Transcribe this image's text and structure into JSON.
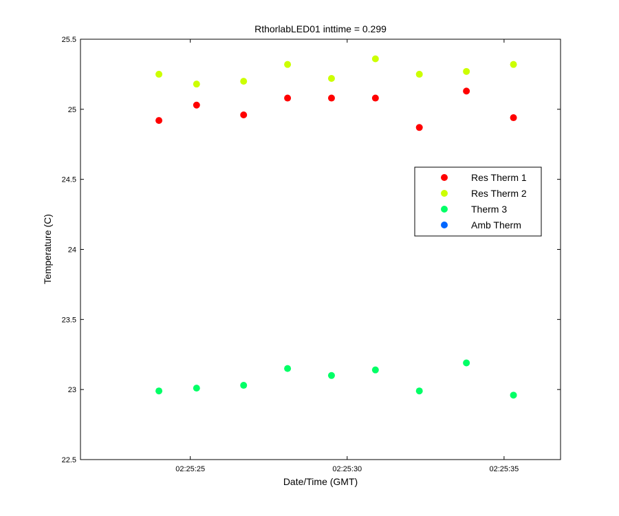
{
  "chart_data": {
    "type": "scatter",
    "title": "RthorlabLED01 inttime = 0.299",
    "xlabel": "Date/Time (GMT)",
    "ylabel": "Temperature (C)",
    "x_axis": {
      "kind": "time",
      "range": [
        "02:25:21.5",
        "02:25:36.8"
      ],
      "ticks": [
        "02:25:25",
        "02:25:30",
        "02:25:35"
      ]
    },
    "y_axis": {
      "range": [
        22.5,
        25.5
      ],
      "ticks": [
        "22.5",
        "23",
        "23.5",
        "24",
        "24.5",
        "25",
        "25.5"
      ]
    },
    "grid": false,
    "legend": {
      "position": "right"
    },
    "x": [
      "02:25:24.0",
      "02:25:25.2",
      "02:25:26.7",
      "02:25:28.1",
      "02:25:29.5",
      "02:25:30.9",
      "02:25:32.3",
      "02:25:33.8",
      "02:25:35.3"
    ],
    "series": [
      {
        "name": "Res Therm 1",
        "color": "#ff0000",
        "values": [
          24.92,
          25.03,
          24.96,
          25.08,
          25.08,
          25.08,
          24.87,
          25.13,
          24.94
        ]
      },
      {
        "name": "Res Therm 2",
        "color": "#ccff00",
        "values": [
          25.25,
          25.18,
          25.2,
          25.32,
          25.22,
          25.36,
          25.25,
          25.27,
          25.32
        ]
      },
      {
        "name": "Therm 3",
        "color": "#00ff66",
        "values": [
          22.99,
          23.01,
          23.03,
          23.15,
          23.1,
          23.14,
          22.99,
          23.19,
          22.96
        ]
      },
      {
        "name": "Amb Therm",
        "color": "#0066ff",
        "values": []
      }
    ]
  }
}
